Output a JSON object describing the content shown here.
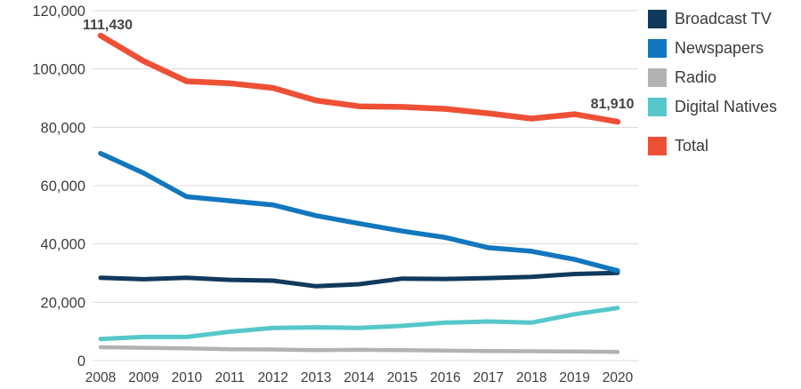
{
  "chart_data": {
    "type": "line",
    "title": "",
    "xlabel": "",
    "ylabel": "",
    "x": [
      2008,
      2009,
      2010,
      2011,
      2012,
      2013,
      2014,
      2015,
      2016,
      2017,
      2018,
      2019,
      2020
    ],
    "series": [
      {
        "name": "Broadcast TV",
        "color": "#10395c",
        "values": [
          28390,
          27900,
          28400,
          27700,
          27400,
          25500,
          26200,
          28100,
          28000,
          28300,
          28700,
          29700,
          30100
        ]
      },
      {
        "name": "Newspapers",
        "color": "#1277be",
        "values": [
          71070,
          64300,
          56200,
          54800,
          53400,
          49700,
          47000,
          44400,
          42200,
          38700,
          37500,
          34700,
          30820
        ]
      },
      {
        "name": "Radio",
        "color": "#b2b2b2",
        "values": [
          4570,
          4400,
          4200,
          3900,
          3800,
          3600,
          3700,
          3600,
          3400,
          3300,
          3200,
          3100,
          2960
        ]
      },
      {
        "name": "Digital Natives",
        "color": "#56c7ca",
        "values": [
          7400,
          8100,
          8100,
          9900,
          11200,
          11400,
          11200,
          11900,
          13000,
          13400,
          13000,
          15900,
          18030
        ]
      },
      {
        "name": "Total",
        "color": "#ee5036",
        "values": [
          111430,
          102700,
          95800,
          95100,
          93500,
          89200,
          87200,
          87000,
          86300,
          84800,
          83000,
          84500,
          81910
        ]
      }
    ],
    "ylim": [
      0,
      120000
    ],
    "ytick_step": 20000,
    "grid": "horizontal-only",
    "gridline_color": "#d9d9d9",
    "legend_position": "right",
    "legend_order": [
      "Broadcast TV",
      "Newspapers",
      "Radio",
      "Digital Natives",
      "Total"
    ],
    "legend_gap_before": "Total",
    "annotations": [
      {
        "text": "111,430",
        "x": 2008,
        "y": 111430,
        "series": "Total"
      },
      {
        "text": "81,910",
        "x": 2020,
        "y": 81910,
        "series": "Total"
      }
    ]
  }
}
